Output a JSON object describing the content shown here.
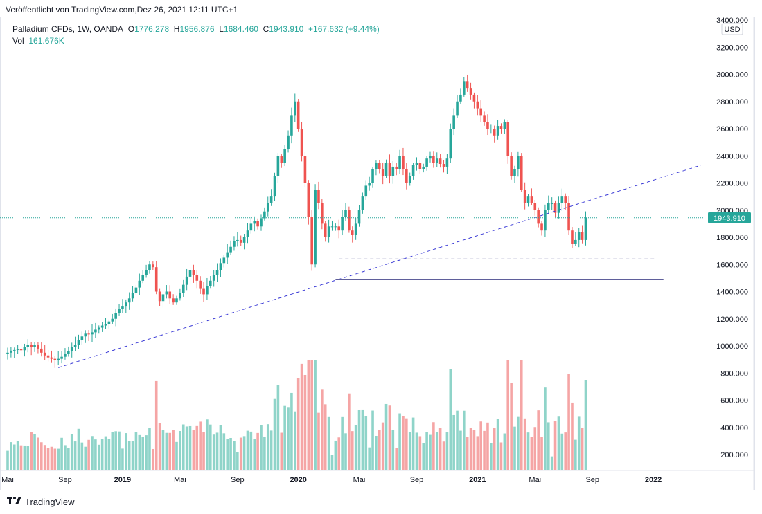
{
  "header": {
    "published": "Veröffentlicht von TradingView.com,Dez 26, 2021 12:11 UTC+1"
  },
  "legend": {
    "symbol": "Palladium CFDs, 1W, OANDA",
    "o_label": "O",
    "o_value": "1776.278",
    "h_label": "H",
    "h_value": "1956.876",
    "l_label": "L",
    "l_value": "1684.460",
    "c_label": "C",
    "c_value": "1943.910",
    "change": "+167.632 (+9.44%)",
    "vol_label": "Vol",
    "vol_value": "161.676K"
  },
  "footer": {
    "brand": "TradingView"
  },
  "colors": {
    "up": "#26a69a",
    "down": "#ef5350",
    "vol_up": "#8fd4c9",
    "vol_down": "#f5a5a5",
    "trendline": "#3b3bd6",
    "support": "#2a2a7a",
    "price_line": "#26a69a"
  },
  "chart_data": {
    "type": "candlestick",
    "title": "Palladium CFDs, 1W, OANDA",
    "currency": "USD",
    "y_axis_ticks": [
      "3400.000",
      "3200.000",
      "3000.000",
      "2800.000",
      "2600.000",
      "2400.000",
      "2200.000",
      "2000.000",
      "1800.000",
      "1600.000",
      "1400.000",
      "1200.000",
      "1000.000",
      "800.000",
      "600.000",
      "400.000",
      "200.000"
    ],
    "y_tick_values": [
      3400,
      3200,
      3000,
      2800,
      2600,
      2400,
      2200,
      2000,
      1800,
      1600,
      1400,
      1200,
      1000,
      800,
      600,
      400,
      200
    ],
    "x_axis_ticks": [
      {
        "label": "Mai",
        "idx": 0
      },
      {
        "label": "Sep",
        "idx": 17
      },
      {
        "label": "2019",
        "idx": 34
      },
      {
        "label": "Mai",
        "idx": 51
      },
      {
        "label": "Sep",
        "idx": 68
      },
      {
        "label": "2020",
        "idx": 86
      },
      {
        "label": "Mai",
        "idx": 104
      },
      {
        "label": "Sep",
        "idx": 121
      },
      {
        "label": "2021",
        "idx": 139
      },
      {
        "label": "Mai",
        "idx": 156
      },
      {
        "label": "Sep",
        "idx": 173
      },
      {
        "label": "2022",
        "idx": 191
      }
    ],
    "current_price": 1943.91,
    "current_price_label": "1943.910",
    "trendline": {
      "style": "dashed",
      "from_idx": 15,
      "from_price": 840,
      "to_idx": 205,
      "to_price": 2330
    },
    "support_line": {
      "style": "solid",
      "from_idx": 97,
      "to_idx": 194,
      "price": 1488
    },
    "resistance_dashed": {
      "style": "dashed",
      "from_idx": 98,
      "to_idx": 192,
      "price": 1640
    },
    "closes": [
      950,
      965,
      970,
      975,
      968,
      990,
      1010,
      990,
      1005,
      980,
      950,
      930,
      915,
      905,
      895,
      905,
      920,
      940,
      960,
      990,
      1010,
      1045,
      1070,
      1090,
      1085,
      1100,
      1120,
      1135,
      1150,
      1160,
      1180,
      1200,
      1240,
      1270,
      1290,
      1320,
      1350,
      1390,
      1430,
      1480,
      1520,
      1560,
      1600,
      1580,
      1400,
      1330,
      1380,
      1400,
      1350,
      1320,
      1350,
      1390,
      1450,
      1510,
      1560,
      1520,
      1480,
      1420,
      1380,
      1440,
      1480,
      1520,
      1560,
      1610,
      1650,
      1690,
      1730,
      1770,
      1780,
      1760,
      1800,
      1850,
      1900,
      1920,
      1880,
      1940,
      1990,
      2050,
      2100,
      2250,
      2400,
      2350,
      2450,
      2550,
      2700,
      2800,
      2600,
      2400,
      2200,
      1950,
      1600,
      2150,
      2050,
      1900,
      1800,
      1880,
      1880,
      1880,
      1850,
      1950,
      2000,
      1850,
      1820,
      1900,
      2000,
      2100,
      2180,
      2200,
      2300,
      2350,
      2300,
      2250,
      2350,
      2250,
      2320,
      2300,
      2400,
      2300,
      2200,
      2250,
      2330,
      2350,
      2300,
      2320,
      2380,
      2400,
      2350,
      2380,
      2340,
      2320,
      2380,
      2600,
      2700,
      2800,
      2850,
      2950,
      2900,
      2850,
      2800,
      2750,
      2700,
      2650,
      2600,
      2600,
      2550,
      2620,
      2600,
      2650,
      2400,
      2250,
      2300,
      2400,
      2150,
      2050,
      2100,
      2050,
      2000,
      1900,
      1850,
      2000,
      2050,
      2050,
      1980,
      2050,
      2100,
      2050,
      1850,
      1750,
      1780,
      1840,
      1780,
      1944
    ],
    "volume_axis_ticks": [
      "800.000",
      "600.000",
      "400.000",
      "200.000"
    ]
  }
}
